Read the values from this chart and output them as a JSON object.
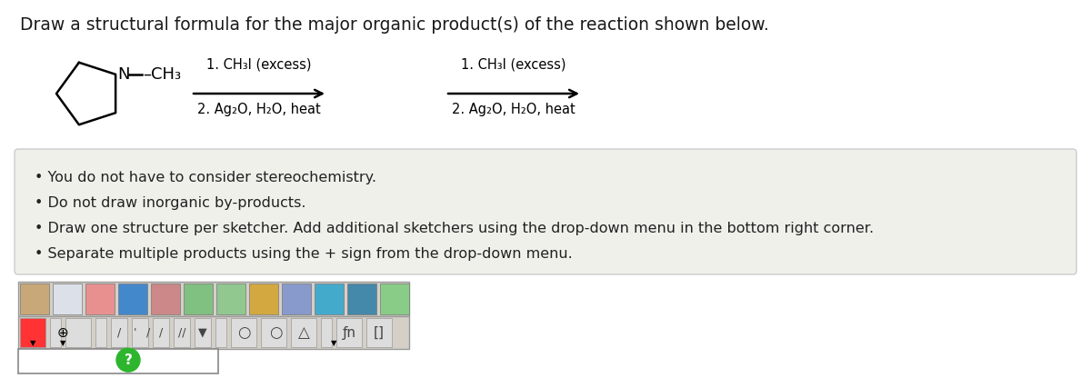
{
  "title": "Draw a structural formula for the major organic product(s) of the reaction shown below.",
  "title_color": "#1a1a1a",
  "title_fontsize": 13.5,
  "bg_color": "#ffffff",
  "reaction_line1": "1. CH₃I (excess)",
  "reaction_line2": "2. Ag₂O, H₂O, heat",
  "bullet_points": [
    "You do not have to consider stereochemistry.",
    "Do not draw inorganic by-products.",
    "Draw one structure per sketcher. Add additional sketchers using the drop-down menu in the bottom right corner.",
    "Separate multiple products using the + sign from the drop-down menu."
  ],
  "bullet_color": "#222222",
  "bullet_fontsize": 11.5,
  "box_bg": "#f0f0eb",
  "box_edge": "#cccccc",
  "toolbar_bg": "#d8d8d8",
  "canvas_bg": "#ffffff",
  "canvas_edge": "#888888"
}
